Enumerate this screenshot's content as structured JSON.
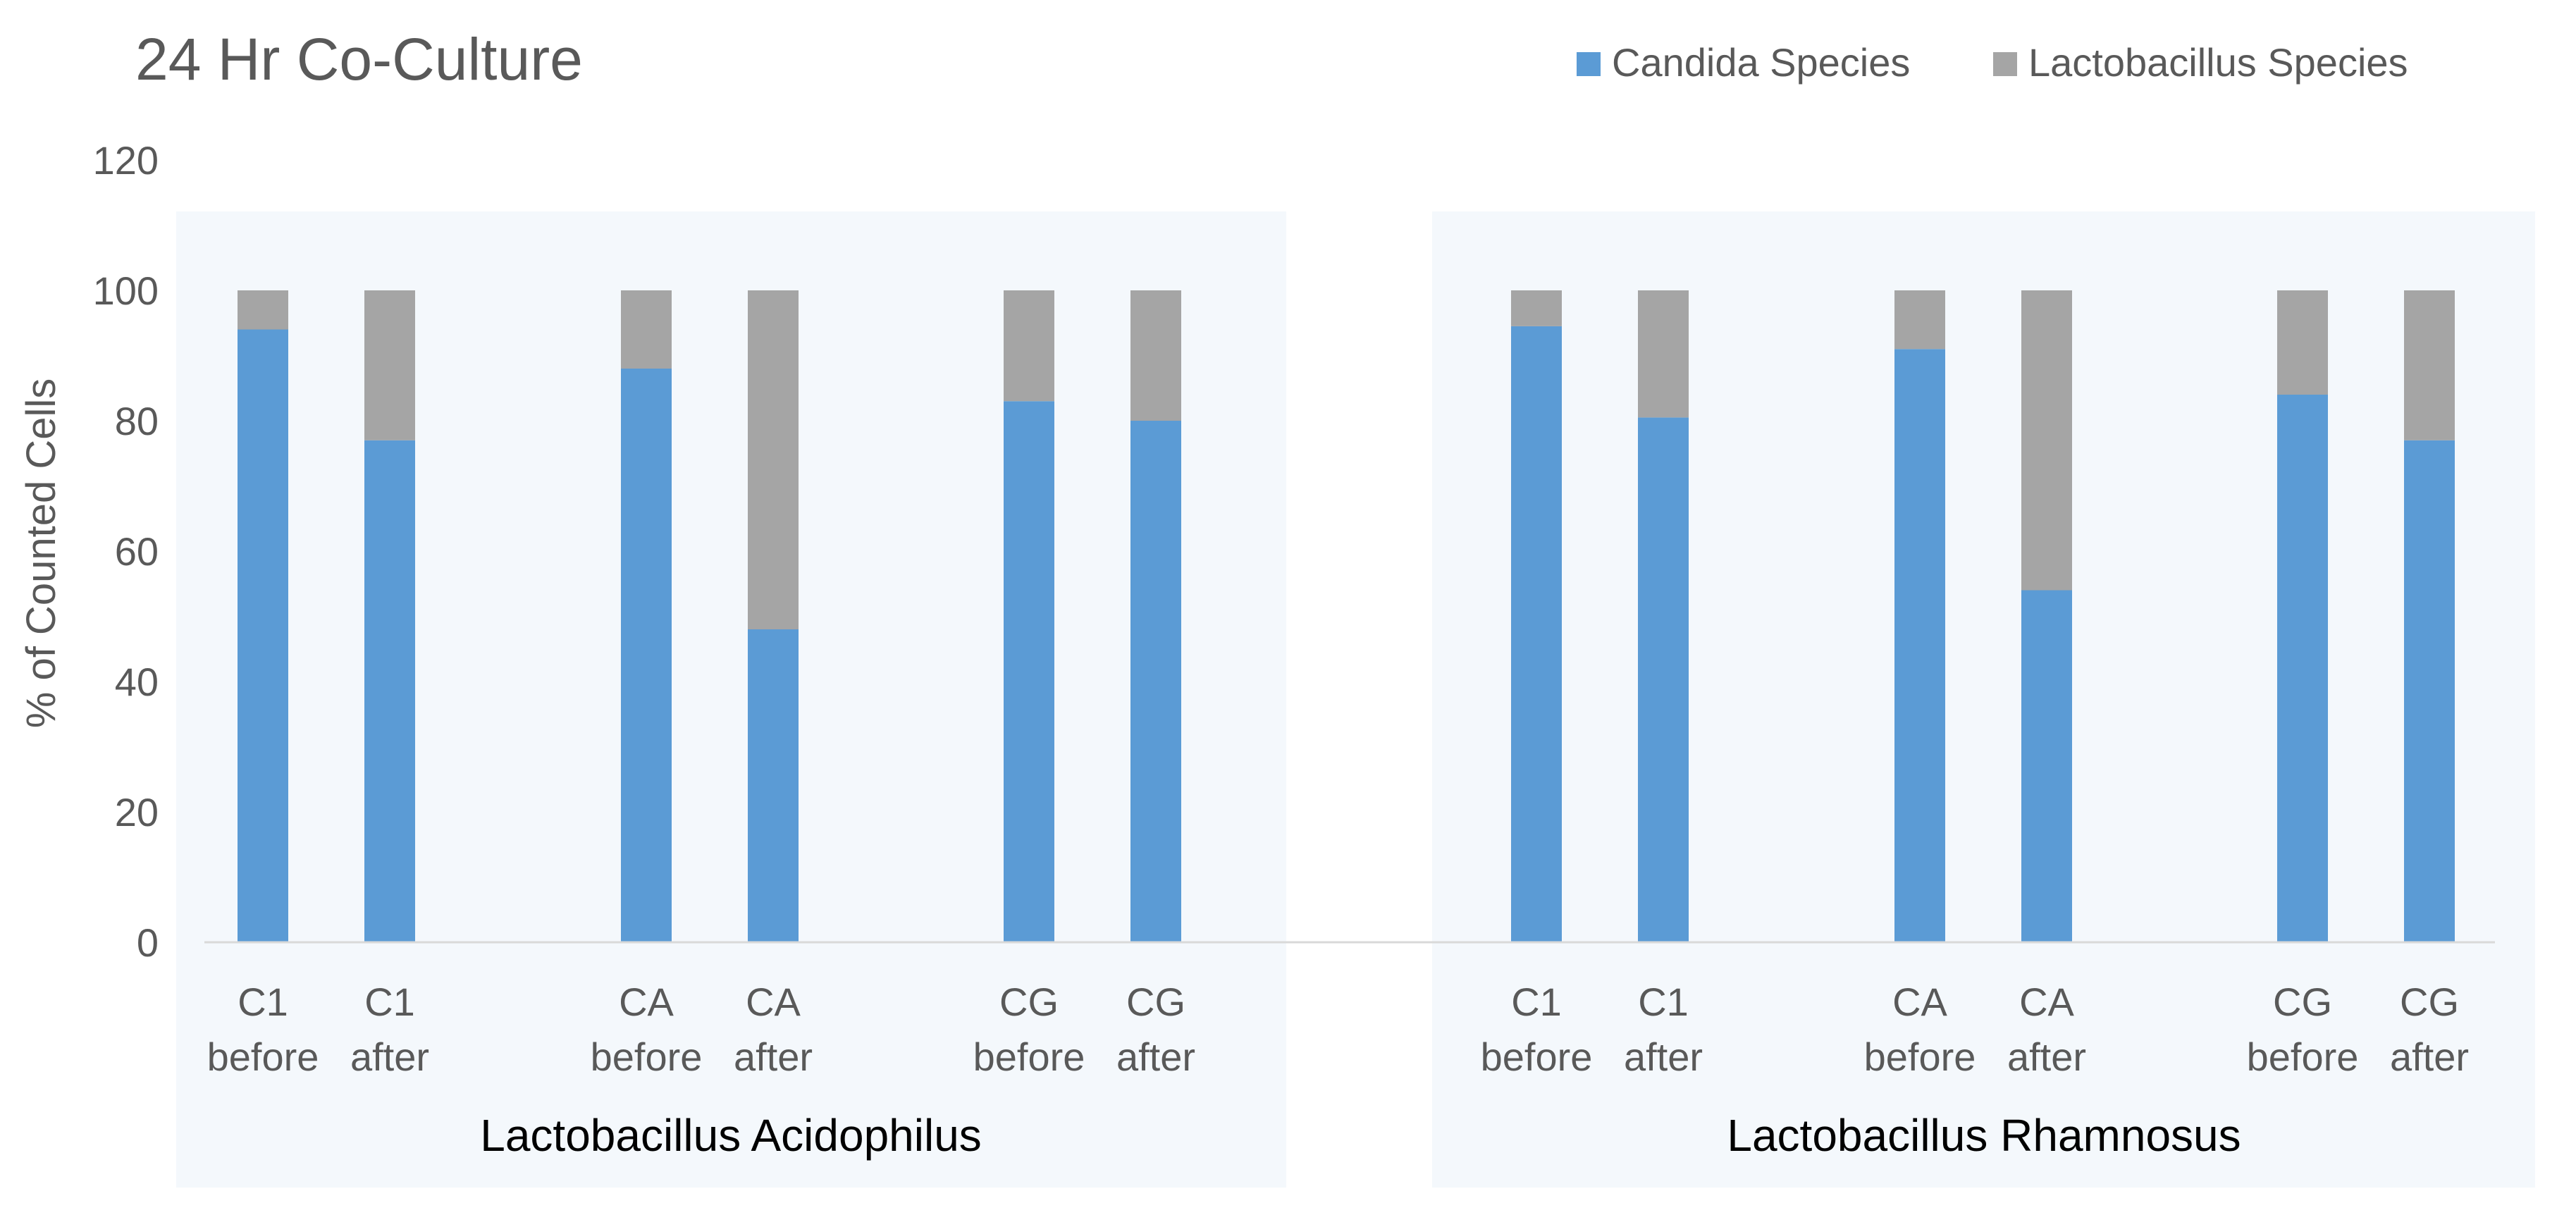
{
  "chart_data": {
    "type": "bar",
    "stacked": true,
    "title": "24 Hr Co-Culture",
    "xlabel": "",
    "ylabel": "% of Counted Cells",
    "ylim": [
      0,
      120
    ],
    "yticks": [
      0,
      20,
      40,
      60,
      80,
      100,
      120
    ],
    "groups": [
      {
        "name": "Lactobacillus Acidophilus",
        "categories": [
          "C1 before",
          "C1 after",
          "CA before",
          "CA after",
          "CG before",
          "CG after"
        ]
      },
      {
        "name": "Lactobacillus Rhamnosus",
        "categories": [
          "C1 before",
          "C1 after",
          "CA before",
          "CA after",
          "CG before",
          "CG after"
        ]
      }
    ],
    "category_labels": [
      {
        "line1": "C1",
        "line2": "before"
      },
      {
        "line1": "C1",
        "line2": "after"
      },
      {
        "line1": "CA",
        "line2": "before"
      },
      {
        "line1": "CA",
        "line2": "after"
      },
      {
        "line1": "CG",
        "line2": "before"
      },
      {
        "line1": "CG",
        "line2": "after"
      }
    ],
    "series": [
      {
        "name": "Candida Species",
        "color": "#5B9BD5",
        "values": [
          [
            94,
            77,
            88,
            48,
            83,
            80
          ],
          [
            94.5,
            80.5,
            91,
            54,
            84,
            77
          ]
        ]
      },
      {
        "name": "Lactobacillus Species",
        "color": "#A5A5A5",
        "values": [
          [
            6,
            23,
            12,
            52,
            17,
            20
          ],
          [
            5.5,
            19.5,
            9,
            46,
            16,
            23
          ]
        ]
      }
    ],
    "legend_position": "top-right",
    "group_background": "#F4F8FC",
    "axis_color": "#D9D9D9"
  }
}
